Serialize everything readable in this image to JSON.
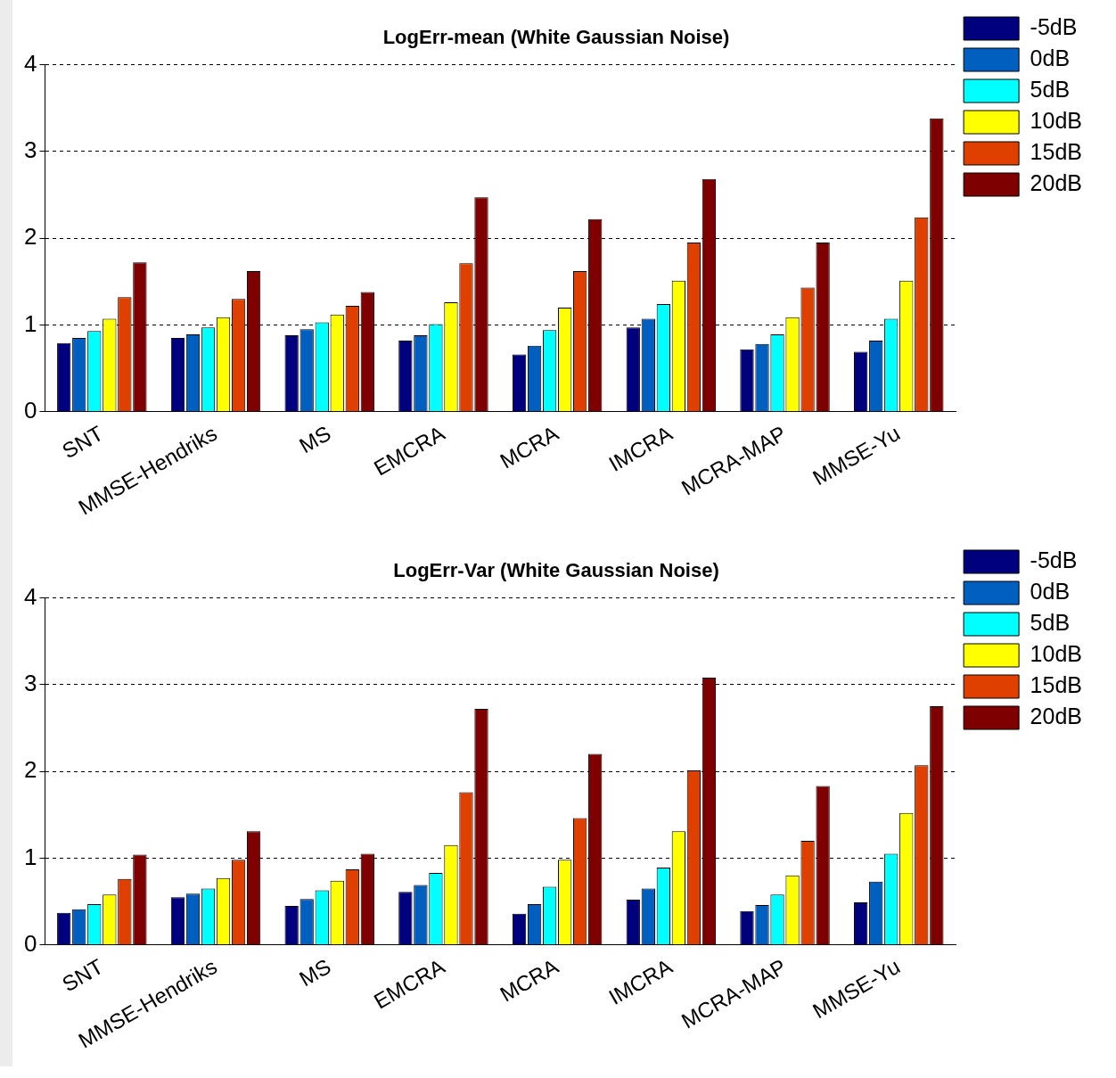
{
  "chart_data": [
    {
      "type": "bar",
      "title": "LogErr-mean (White Gaussian Noise)",
      "categories": [
        "SNT",
        "MMSE-Hendriks",
        "MS",
        "EMCRA",
        "MCRA",
        "IMCRA",
        "MCRA-MAP",
        "MMSE-Yu"
      ],
      "ylim": [
        0,
        4
      ],
      "yticks": [
        0,
        1,
        2,
        3,
        4
      ],
      "grid": "y",
      "legend": "right",
      "series": [
        {
          "name": "-5dB",
          "color": "#00007f",
          "values": [
            0.79,
            0.85,
            0.88,
            0.82,
            0.66,
            0.97,
            0.72,
            0.69
          ]
        },
        {
          "name": "0dB",
          "color": "#005fbf",
          "values": [
            0.85,
            0.89,
            0.95,
            0.88,
            0.76,
            1.07,
            0.78,
            0.82
          ]
        },
        {
          "name": "5dB",
          "color": "#00ffff",
          "values": [
            0.93,
            0.97,
            1.03,
            1.01,
            0.94,
            1.24,
            0.89,
            1.07
          ]
        },
        {
          "name": "10dB",
          "color": "#ffff00",
          "values": [
            1.07,
            1.09,
            1.12,
            1.26,
            1.2,
            1.51,
            1.09,
            1.51
          ]
        },
        {
          "name": "15dB",
          "color": "#df4000",
          "values": [
            1.32,
            1.3,
            1.22,
            1.71,
            1.62,
            1.95,
            1.43,
            2.24
          ]
        },
        {
          "name": "20dB",
          "color": "#7f0000",
          "values": [
            1.72,
            1.62,
            1.38,
            2.47,
            2.22,
            2.68,
            1.95,
            3.38
          ]
        }
      ]
    },
    {
      "type": "bar",
      "title": "LogErr-Var (White Gaussian Noise)",
      "categories": [
        "SNT",
        "MMSE-Hendriks",
        "MS",
        "EMCRA",
        "MCRA",
        "IMCRA",
        "MCRA-MAP",
        "MMSE-Yu"
      ],
      "ylim": [
        0,
        4
      ],
      "yticks": [
        0,
        1,
        2,
        3,
        4
      ],
      "grid": "y",
      "legend": "right",
      "series": [
        {
          "name": "-5dB",
          "color": "#00007f",
          "values": [
            0.37,
            0.55,
            0.45,
            0.61,
            0.36,
            0.52,
            0.39,
            0.49
          ]
        },
        {
          "name": "0dB",
          "color": "#005fbf",
          "values": [
            0.41,
            0.59,
            0.53,
            0.69,
            0.47,
            0.65,
            0.46,
            0.73
          ]
        },
        {
          "name": "5dB",
          "color": "#00ffff",
          "values": [
            0.47,
            0.65,
            0.63,
            0.83,
            0.67,
            0.89,
            0.58,
            1.05
          ]
        },
        {
          "name": "10dB",
          "color": "#ffff00",
          "values": [
            0.58,
            0.77,
            0.74,
            1.15,
            0.98,
            1.31,
            0.8,
            1.52
          ]
        },
        {
          "name": "15dB",
          "color": "#df4000",
          "values": [
            0.76,
            0.98,
            0.87,
            1.76,
            1.46,
            2.01,
            1.2,
            2.07
          ]
        },
        {
          "name": "20dB",
          "color": "#7f0000",
          "values": [
            1.04,
            1.31,
            1.05,
            2.72,
            2.2,
            3.08,
            1.83,
            2.75
          ]
        }
      ]
    }
  ]
}
